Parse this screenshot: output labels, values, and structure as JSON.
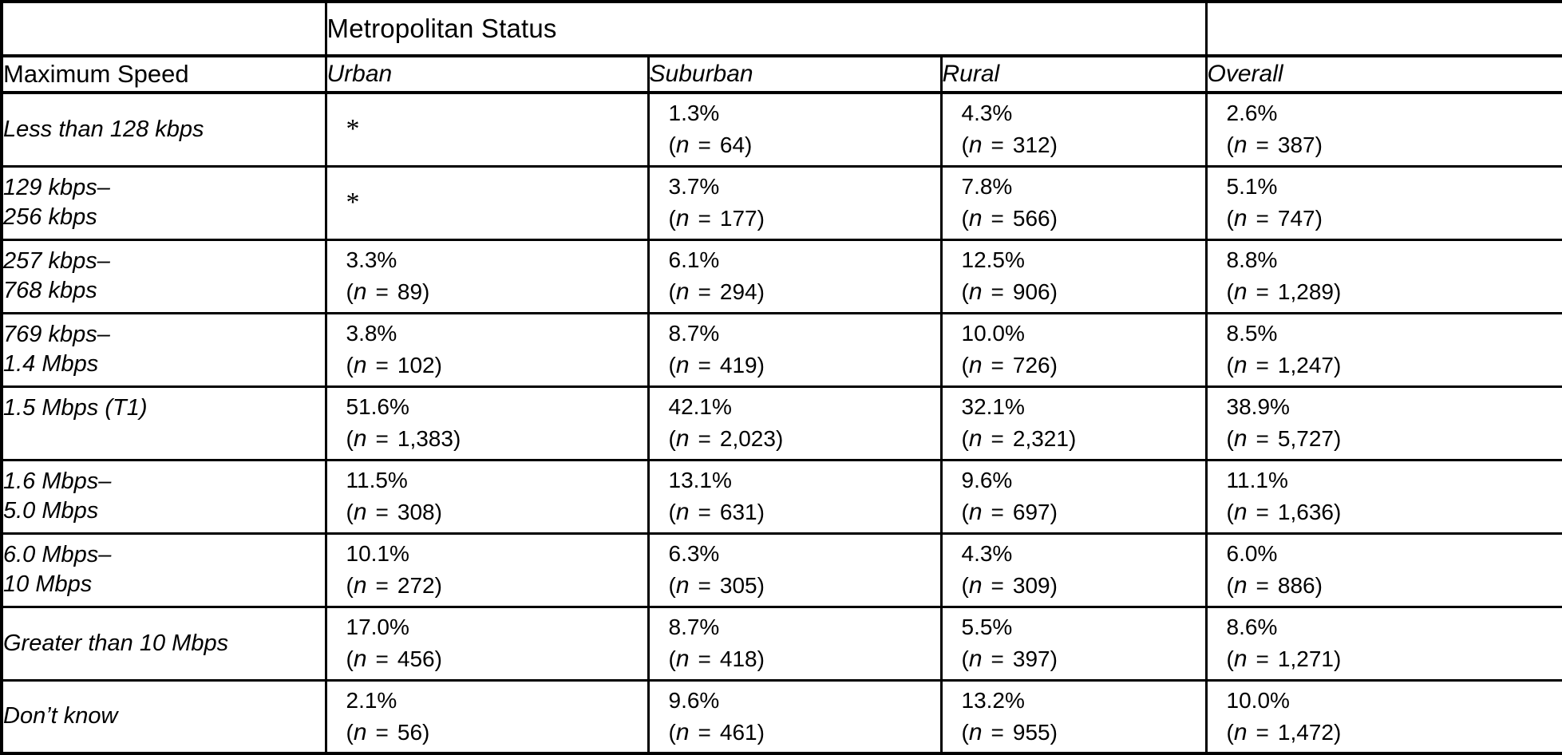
{
  "header": {
    "group_title": "Metropolitan Status",
    "row_label_header": "Maximum Speed",
    "columns": [
      "Urban",
      "Suburban",
      "Rural",
      "Overall"
    ]
  },
  "format": {
    "open_paren": "(",
    "n_var": "n",
    "equals": "=",
    "close_paren": ")",
    "missing_marker": "*"
  },
  "rows": [
    {
      "label_lines": [
        "Less than 128 kbps"
      ],
      "cells": [
        {
          "missing": true
        },
        {
          "pct": "1.3%",
          "n": "64"
        },
        {
          "pct": "4.3%",
          "n": "312"
        },
        {
          "pct": "2.6%",
          "n": "387"
        }
      ]
    },
    {
      "label_lines": [
        "129 kbps–",
        "256 kbps"
      ],
      "cells": [
        {
          "missing": true
        },
        {
          "pct": "3.7%",
          "n": "177"
        },
        {
          "pct": "7.8%",
          "n": "566"
        },
        {
          "pct": "5.1%",
          "n": "747"
        }
      ]
    },
    {
      "label_lines": [
        "257 kbps–",
        "768 kbps"
      ],
      "cells": [
        {
          "pct": "3.3%",
          "n": "89"
        },
        {
          "pct": "6.1%",
          "n": "294"
        },
        {
          "pct": "12.5%",
          "n": "906"
        },
        {
          "pct": "8.8%",
          "n": "1,289"
        }
      ]
    },
    {
      "label_lines": [
        "769 kbps–",
        "1.4 Mbps"
      ],
      "cells": [
        {
          "pct": "3.8%",
          "n": "102"
        },
        {
          "pct": "8.7%",
          "n": "419"
        },
        {
          "pct": "10.0%",
          "n": "726"
        },
        {
          "pct": "8.5%",
          "n": "1,247"
        }
      ]
    },
    {
      "label_lines": [
        "1.5 Mbps (T1)",
        ""
      ],
      "cells": [
        {
          "pct": "51.6%",
          "n": "1,383"
        },
        {
          "pct": "42.1%",
          "n": "2,023"
        },
        {
          "pct": "32.1%",
          "n": "2,321"
        },
        {
          "pct": "38.9%",
          "n": "5,727"
        }
      ]
    },
    {
      "label_lines": [
        "1.6 Mbps–",
        "5.0 Mbps"
      ],
      "cells": [
        {
          "pct": "11.5%",
          "n": "308"
        },
        {
          "pct": "13.1%",
          "n": "631"
        },
        {
          "pct": "9.6%",
          "n": "697"
        },
        {
          "pct": "11.1%",
          "n": "1,636"
        }
      ]
    },
    {
      "label_lines": [
        "6.0 Mbps–",
        "10 Mbps"
      ],
      "cells": [
        {
          "pct": "10.1%",
          "n": "272"
        },
        {
          "pct": "6.3%",
          "n": "305"
        },
        {
          "pct": "4.3%",
          "n": "309"
        },
        {
          "pct": "6.0%",
          "n": "886"
        }
      ]
    },
    {
      "label_lines": [
        "Greater than 10 Mbps"
      ],
      "cells": [
        {
          "pct": "17.0%",
          "n": "456"
        },
        {
          "pct": "8.7%",
          "n": "418"
        },
        {
          "pct": "5.5%",
          "n": "397"
        },
        {
          "pct": "8.6%",
          "n": "1,271"
        }
      ]
    },
    {
      "label_lines": [
        "Don’t know"
      ],
      "cells": [
        {
          "pct": "2.1%",
          "n": "56"
        },
        {
          "pct": "9.6%",
          "n": "461"
        },
        {
          "pct": "13.2%",
          "n": "955"
        },
        {
          "pct": "10.0%",
          "n": "1,472"
        }
      ]
    }
  ]
}
